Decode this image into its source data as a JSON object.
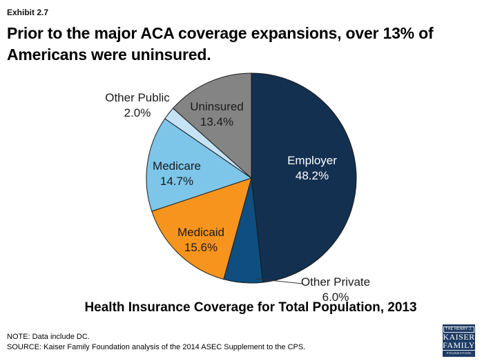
{
  "exhibit_label": "Exhibit 2.7",
  "title_lines": [
    "Prior to the major ACA coverage expansions, over 13% of",
    "Americans were uninsured."
  ],
  "chart_data": {
    "type": "pie",
    "title": "Health Insurance Coverage for Total Population, 2013",
    "start_angle_deg": 0,
    "direction": "clockwise",
    "stroke_color": "#1A1A1A",
    "slices": [
      {
        "label": "Employer",
        "value": 48.2,
        "display": "48.2%",
        "color": "#133050",
        "text_color": "#FFFFFF",
        "label_position": "inside"
      },
      {
        "label": "Other Private",
        "value": 6.0,
        "display": "6.0%",
        "color": "#0E4E80",
        "text_color": "#1A1A1A",
        "label_position": "outside-callout"
      },
      {
        "label": "Medicaid",
        "value": 15.6,
        "display": "15.6%",
        "color": "#F7941E",
        "text_color": "#1A1A1A",
        "label_position": "inside"
      },
      {
        "label": "Medicare",
        "value": 14.7,
        "display": "14.7%",
        "color": "#7EC5EA",
        "text_color": "#1A1A1A",
        "label_position": "inside"
      },
      {
        "label": "Other Public",
        "value": 2.0,
        "display": "2.0%",
        "color": "#C6E2F5",
        "text_color": "#1A1A1A",
        "label_position": "outside"
      },
      {
        "label": "Uninsured",
        "value": 13.4,
        "display": "13.4%",
        "color": "#848484",
        "text_color": "#1A1A1A",
        "label_position": "inside"
      }
    ]
  },
  "note": "NOTE: Data include DC.",
  "source": "SOURCE: Kaiser Family Foundation analysis of the 2014 ASEC Supplement to the CPS.",
  "logo": {
    "line1": "THE HENRY J.",
    "line2": "KAISER",
    "line3": "FAMILY",
    "line4": "FOUNDATION"
  }
}
